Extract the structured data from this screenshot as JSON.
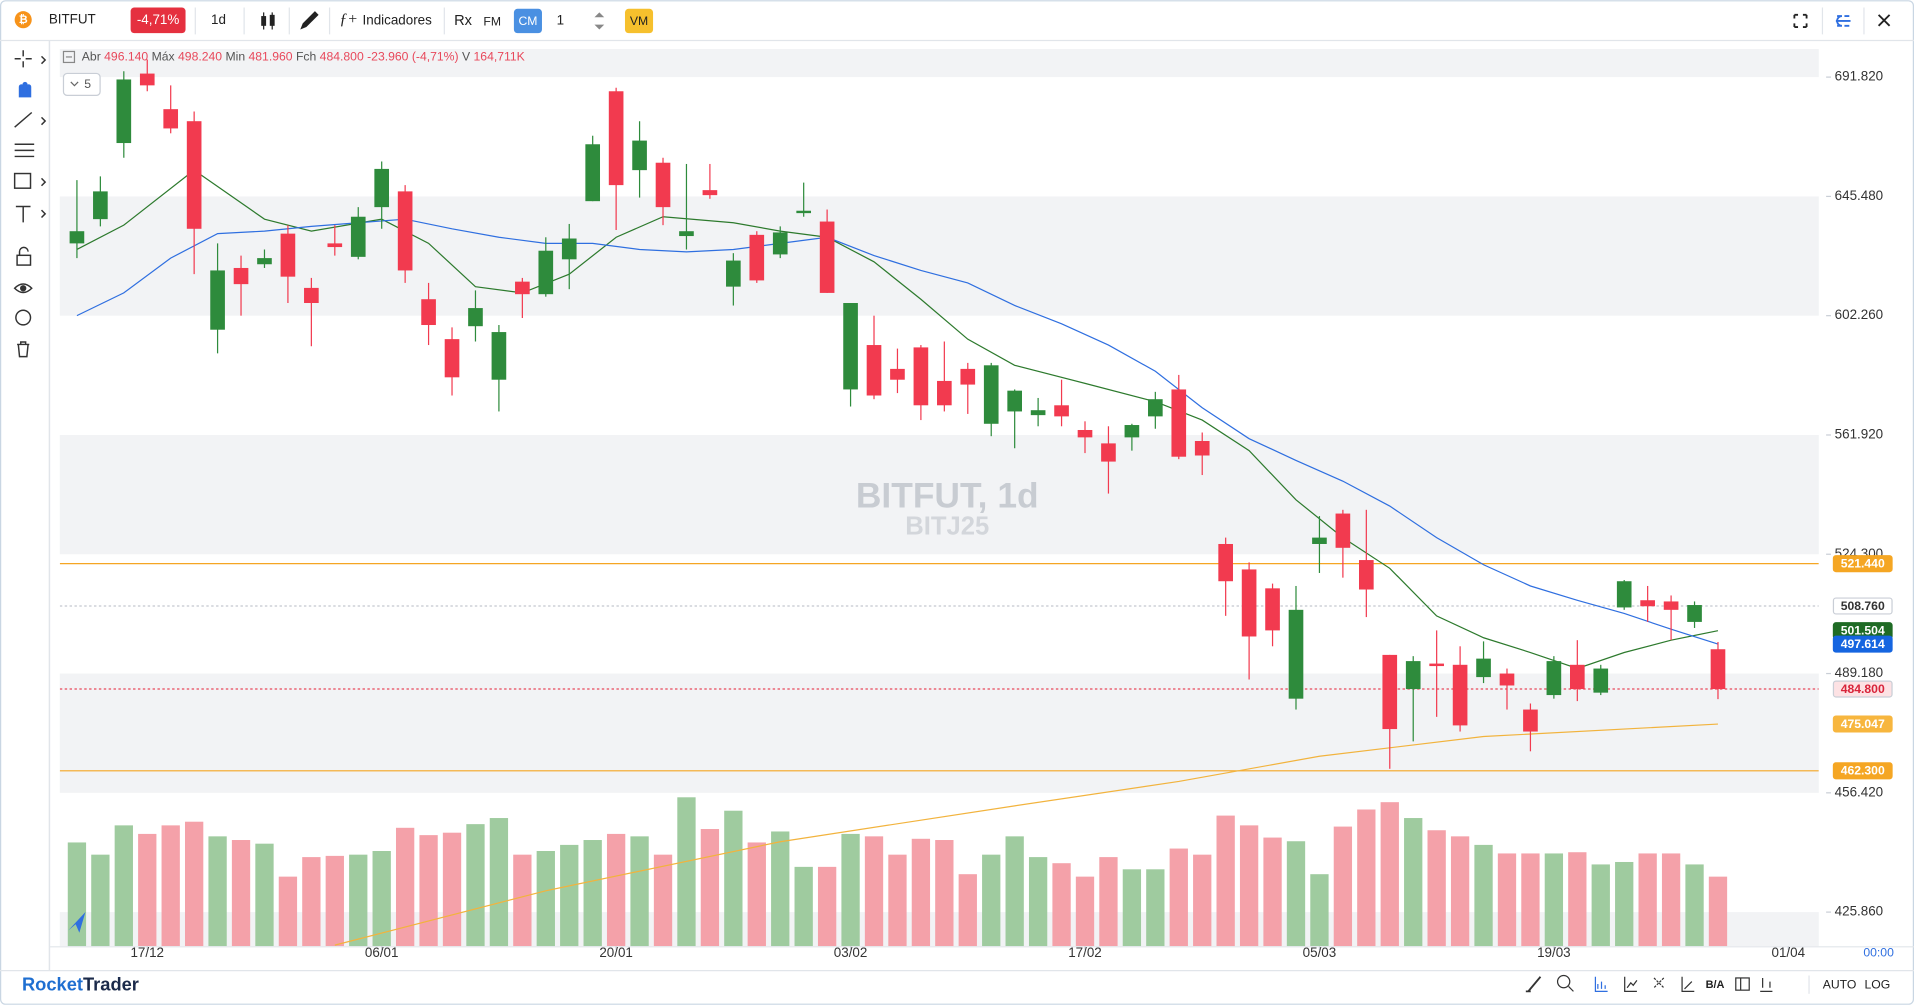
{
  "toolbar": {
    "symbol": "BITFUT",
    "change": "-4,71%",
    "interval": "1d",
    "indicators": "Indicadores",
    "rx": "Rx",
    "fm": "FM",
    "cm": "CM",
    "quantity": "1",
    "vm": "VM"
  },
  "legend": {
    "open_label": "Abr",
    "open": "496.140",
    "high_label": "Máx",
    "high": "498.240",
    "low_label": "Min",
    "low": "481.960",
    "close_label": "Fch",
    "close": "484.800",
    "change": "-23.960 (-4,71%)",
    "volume_label": "V",
    "volume": "164,711K",
    "period": "5"
  },
  "watermark": {
    "title": "BITFUT, 1d",
    "subtitle": "BITJ25"
  },
  "chart_data": {
    "type": "candlestick",
    "log_scale": true,
    "xlim": [
      -0.73,
      74.3
    ],
    "ylim": [
      417.5,
      703.2
    ],
    "xticks": [
      {
        "value": 3,
        "label": "17/12"
      },
      {
        "value": 13,
        "label": "06/01"
      },
      {
        "value": 23,
        "label": "20/01"
      },
      {
        "value": 33,
        "label": "03/02"
      },
      {
        "value": 43,
        "label": "17/02"
      },
      {
        "value": 53,
        "label": "05/03"
      },
      {
        "value": 63,
        "label": "19/03"
      },
      {
        "value": 73,
        "label": "01/04"
      }
    ],
    "yticks": [
      {
        "value": 691.82,
        "label": "691.820"
      },
      {
        "value": 645.48,
        "label": "645.480"
      },
      {
        "value": 602.26,
        "label": "602.260"
      },
      {
        "value": 561.92,
        "label": "561.920"
      },
      {
        "value": 524.3,
        "label": "524.300"
      },
      {
        "value": 489.18,
        "label": "489.180"
      },
      {
        "value": 456.42,
        "label": "456.420"
      },
      {
        "value": 425.86,
        "label": "425.860"
      }
    ],
    "up_color": "#2e8b3c",
    "down_color": "#f23a4f",
    "volume_up_color": "#9fcb9f",
    "volume_down_color": "#f4a1a9",
    "open": [
      628.1,
      637.01,
      665.81,
      693.24,
      679.05,
      674.32,
      597.37,
      619.19,
      620.53,
      631.67,
      612.06,
      628.1,
      623.2,
      641.47,
      647.37,
      608.05,
      594.11,
      598.59,
      580.26,
      614.29,
      609.83,
      622.31,
      643.7,
      686.15,
      655.41,
      658.24,
      630.78,
      647.84,
      612.51,
      631.22,
      624.09,
      639.24,
      636.12,
      576.99,
      592.07,
      583.92,
      591.26,
      579.85,
      583.92,
      565.59,
      569.66,
      568.44,
      571.7,
      563.55,
      559.18,
      561.14,
      568.03,
      576.99,
      559.96,
      527.43,
      519.69,
      514.01,
      482.09,
      527.43,
      536.84,
      522.53,
      494.51,
      484.79,
      492.02,
      491.67,
      488.17,
      489.18,
      479.05,
      483.1,
      491.67,
      483.78,
      508.34,
      510.47,
      510.11,
      504.08,
      496.14
    ],
    "high": [
      651.62,
      653.04,
      694.18,
      698.91,
      688.51,
      678.11,
      628.1,
      623.65,
      625.87,
      634.79,
      615.62,
      634.79,
      641.47,
      658.72,
      649.73,
      613.84,
      598.18,
      611.17,
      599.0,
      615.62,
      630.33,
      635.23,
      668.65,
      687.56,
      674.32,
      660.14,
      657.77,
      657.77,
      624.54,
      632.56,
      634.34,
      650.68,
      640.58,
      606.71,
      602.26,
      590.85,
      592.07,
      593.29,
      585.96,
      585.96,
      576.99,
      574.14,
      580.26,
      566.4,
      564.77,
      565.59,
      576.18,
      581.88,
      562.73,
      529.39,
      521.82,
      515.43,
      514.72,
      536.05,
      538.01,
      538.01,
      494.51,
      494.15,
      501.6,
      496.99,
      498.41,
      490.6,
      480.74,
      494.15,
      498.76,
      491.67,
      516.5,
      514.72,
      511.89,
      510.11,
      498.24
    ],
    "low": [
      622.75,
      634.34,
      660.14,
      686.15,
      669.59,
      616.96,
      589.22,
      602.26,
      619.19,
      606.71,
      591.66,
      623.65,
      622.31,
      633.45,
      613.84,
      592.07,
      574.96,
      593.29,
      569.66,
      601.44,
      608.94,
      611.61,
      643.7,
      633.0,
      645.03,
      634.79,
      625.87,
      644.59,
      605.82,
      613.84,
      622.75,
      637.9,
      610.28,
      571.29,
      573.73,
      575.77,
      566.81,
      569.66,
      568.84,
      561.53,
      557.61,
      564.77,
      564.77,
      556.04,
      543.11,
      556.83,
      563.96,
      554.08,
      548.99,
      505.86,
      487.49,
      496.99,
      479.05,
      518.62,
      517.21,
      505.5,
      462.84,
      470.27,
      477.02,
      472.97,
      486.48,
      479.05,
      467.57,
      482.09,
      481.41,
      483.1,
      507.63,
      504.08,
      498.76,
      502.31,
      481.96
    ],
    "close": [
      632.56,
      647.37,
      690.87,
      688.51,
      671.49,
      633.45,
      618.3,
      613.4,
      622.75,
      616.07,
      606.71,
      626.76,
      637.9,
      655.88,
      618.3,
      599.0,
      581.07,
      604.93,
      596.55,
      609.83,
      625.43,
      629.88,
      665.34,
      649.73,
      666.76,
      641.47,
      632.56,
      645.95,
      621.86,
      614.73,
      632.11,
      640.13,
      610.28,
      606.71,
      574.96,
      580.26,
      571.7,
      571.7,
      578.62,
      585.14,
      576.58,
      570.07,
      568.03,
      561.14,
      553.3,
      565.18,
      573.73,
      554.87,
      555.26,
      516.14,
      499.83,
      501.6,
      507.63,
      529.39,
      526.26,
      513.66,
      473.65,
      492.73,
      491.31,
      474.66,
      493.44,
      485.8,
      472.97,
      492.73,
      484.79,
      490.6,
      516.14,
      508.69,
      507.63,
      509.05,
      484.8
    ],
    "volume": [
      245650,
      216750,
      286110,
      265880,
      286110,
      294780,
      260100,
      251430,
      242760,
      164730,
      210970,
      213860,
      216750,
      225420,
      280330,
      262990,
      268770,
      289000,
      303450,
      216750,
      225420,
      239870,
      251430,
      265880,
      260100,
      216750,
      352580,
      277440,
      320790,
      245650,
      271660,
      187850,
      187850,
      265880,
      260100,
      216750,
      254320,
      251430,
      170510,
      216750,
      260100,
      210970,
      196520,
      164730,
      210970,
      182070,
      182070,
      231200,
      216750,
      309230,
      286110,
      257210,
      248540,
      170510,
      283220,
      323680,
      341020,
      303450,
      274550,
      260100,
      239870,
      219640,
      219640,
      219640,
      222530,
      193630,
      199410,
      219640,
      219640,
      193630,
      164711
    ],
    "overlays": [
      {
        "color": "#2d7a2d",
        "tag_fill": "#1f6b25",
        "tag_text": "#ffffff",
        "value_label": "501.504",
        "x": [
          0,
          2,
          5,
          8,
          10,
          13,
          15,
          17,
          19,
          21,
          23,
          25,
          28,
          30,
          32,
          34,
          36,
          38,
          40,
          43,
          46,
          48,
          50,
          52,
          54,
          56,
          58,
          60,
          62,
          64,
          66,
          68,
          70
        ],
        "values": [
          625.87,
          634.79,
          655.41,
          637.01,
          632.56,
          637.01,
          628.1,
          612.51,
          610.28,
          616.96,
          630.33,
          637.9,
          635.68,
          632.56,
          630.33,
          621.42,
          608.05,
          594.11,
          585.14,
          579.03,
          572.92,
          566.81,
          556.83,
          541.15,
          529.39,
          520.04,
          505.86,
          499.47,
          495.21,
          490.6,
          495.21,
          498.76,
          501.504
        ]
      },
      {
        "color": "#2f6fe0",
        "tag_fill": "#1565e0",
        "tag_text": "#ffffff",
        "value_label": "497.614",
        "x": [
          0,
          2,
          4,
          6,
          8,
          10,
          12,
          14,
          16,
          18,
          20,
          22,
          24,
          26,
          28,
          30,
          32,
          34,
          36,
          38,
          40,
          42,
          44,
          46,
          48,
          50,
          52,
          54,
          56,
          58,
          60,
          62,
          64,
          66,
          68,
          70
        ],
        "values": [
          602.26,
          610.28,
          622.75,
          631.67,
          632.56,
          634.34,
          635.68,
          637.01,
          633.45,
          630.33,
          628.1,
          628.1,
          625.87,
          624.98,
          625.87,
          628.1,
          630.33,
          623.65,
          618.3,
          613.84,
          605.82,
          599.41,
          592.07,
          583.1,
          570.88,
          560.74,
          553.69,
          547.03,
          539.19,
          529.39,
          521.11,
          514.72,
          510.47,
          506.57,
          501.95,
          497.614
        ]
      },
      {
        "color": "#f2b33d",
        "tag_fill": "#f7b63e",
        "tag_text": "#ffffff",
        "value_label": "475.047",
        "x": [
          11,
          20,
          30,
          40,
          47,
          53,
          60,
          70
        ],
        "values": [
          417.76,
          431.17,
          443.64,
          452.99,
          459.46,
          466.22,
          471.62,
          475.047
        ]
      }
    ],
    "levels": [
      {
        "value": 521.44,
        "label": "521.440",
        "line_color": "#f5a623",
        "dotted": false,
        "tag_fill": "#f5a623",
        "tag_text": "#ffffff"
      },
      {
        "value": 462.3,
        "label": "462.300",
        "line_color": "#f5a623",
        "dotted": false,
        "tag_fill": "#f5a623",
        "tag_text": "#ffffff"
      },
      {
        "value": 508.76,
        "label": "508.760",
        "line_color": "#c4c8cf",
        "dotted": true,
        "tag_fill": "#ffffff",
        "tag_text": "#333333"
      },
      {
        "value": 484.8,
        "label": "484.800",
        "line_color": "#e8485b",
        "dotted": true,
        "tag_fill": "#fde2e4",
        "tag_text": "#d8243a"
      }
    ],
    "time_label": "00:00"
  },
  "footer": {
    "brand_a": "Rocket",
    "brand_b": "Trader",
    "ba": "B/A",
    "auto": "AUTO",
    "log": "LOG"
  }
}
